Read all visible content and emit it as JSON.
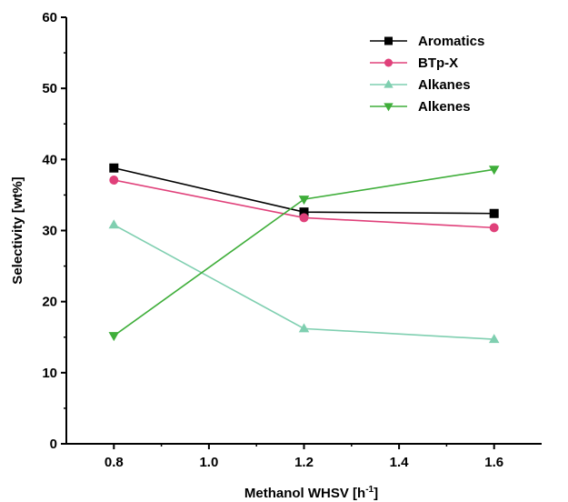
{
  "chart_data": {
    "type": "line",
    "title": "",
    "xlabel": "Methanol WHSV [h",
    "xlabel_sup": "-1",
    "xlabel_end": "]",
    "ylabel": "Selectivity [wt%]",
    "xlim": [
      0.7,
      1.7
    ],
    "ylim": [
      0,
      60
    ],
    "xticks": [
      "0.8",
      "1.0",
      "1.2",
      "1.4",
      "1.6"
    ],
    "yticks": [
      "0",
      "10",
      "20",
      "30",
      "40",
      "50",
      "60"
    ],
    "grid": false,
    "legend_position": "top-right",
    "x": [
      0.8,
      1.2,
      1.6
    ],
    "series": [
      {
        "name": "Aromatics",
        "values": [
          38.8,
          32.6,
          32.4
        ],
        "color": "#000000",
        "marker": "square"
      },
      {
        "name": "BTp-X",
        "values": [
          37.1,
          31.8,
          30.4
        ],
        "color": "#e0407a",
        "marker": "circle"
      },
      {
        "name": "Alkanes",
        "values": [
          30.8,
          16.2,
          14.7
        ],
        "color": "#7fcfb0",
        "marker": "triangle-up"
      },
      {
        "name": "Alkenes",
        "values": [
          15.2,
          34.4,
          38.6
        ],
        "color": "#3fae3a",
        "marker": "triangle-down"
      }
    ]
  }
}
